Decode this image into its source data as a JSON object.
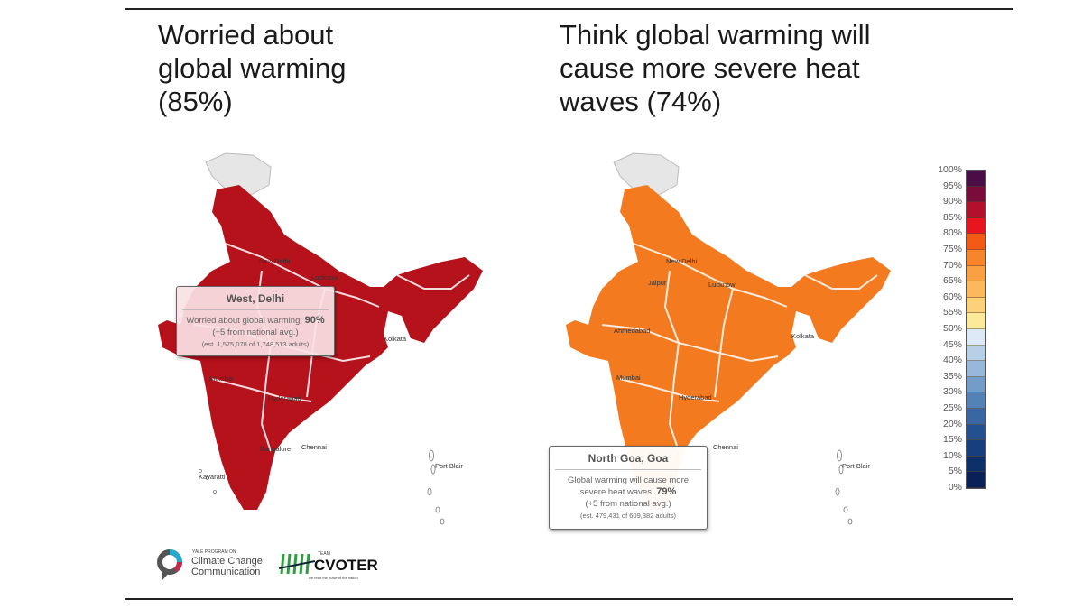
{
  "left_panel": {
    "title": [
      "Worried about",
      "global warming",
      "(85%)"
    ],
    "tooltip": {
      "heading": "West, Delhi",
      "line1": "Worried about global warming: ",
      "value": "90%",
      "line2": "(+5 from national avg.)",
      "line3": "(est. 1,575,078 of 1,748,513 adults)"
    },
    "cities": [
      "New Delhi",
      "Lucknow",
      "Kolkata",
      "Mumbai",
      "Hyderabad",
      "Bangalore",
      "Chennai",
      "Kavaratti",
      "Port Blair"
    ],
    "fill": "#b5121b"
  },
  "right_panel": {
    "title": [
      "Think global warming will",
      "cause more severe heat",
      "waves (74%)"
    ],
    "tooltip": {
      "heading": "North Goa, Goa",
      "line1": "Global warming will cause more severe heat waves: ",
      "value": "79%",
      "line2": "(+5 from national avg.)",
      "line3": "(est. 479,431 of 609,382 adults)"
    },
    "cities": [
      "New Delhi",
      "Jaipur",
      "Lucknow",
      "Ahmedabad",
      "Kolkata",
      "Mumbai",
      "Hyderabad",
      "Chennai",
      "Port Blair"
    ],
    "fill": "#f47a20"
  },
  "legend": {
    "labels": [
      "100%",
      "95%",
      "90%",
      "85%",
      "80%",
      "75%",
      "70%",
      "65%",
      "60%",
      "55%",
      "50%",
      "45%",
      "40%",
      "35%",
      "30%",
      "25%",
      "20%",
      "15%",
      "10%",
      "5%",
      "0%"
    ],
    "colors": [
      "#4a0d45",
      "#7a0c3c",
      "#b3102b",
      "#e8141f",
      "#f25a16",
      "#f6852b",
      "#f9a043",
      "#fbb85c",
      "#fdd179",
      "#fde99a",
      "#dde9f6",
      "#b7d0e8",
      "#97b8da",
      "#739cc8",
      "#5582b6",
      "#3a67a2",
      "#24508f",
      "#173f7e",
      "#0e306a",
      "#0a2158"
    ]
  },
  "logos": {
    "yale_small": "YALE PROGRAM ON",
    "yale": [
      "Climate Change",
      "Communication"
    ],
    "cvoter_small": "TEAM",
    "cvoter": "CVOTER",
    "cvoter_tag": "we read the pulse of the nation"
  }
}
